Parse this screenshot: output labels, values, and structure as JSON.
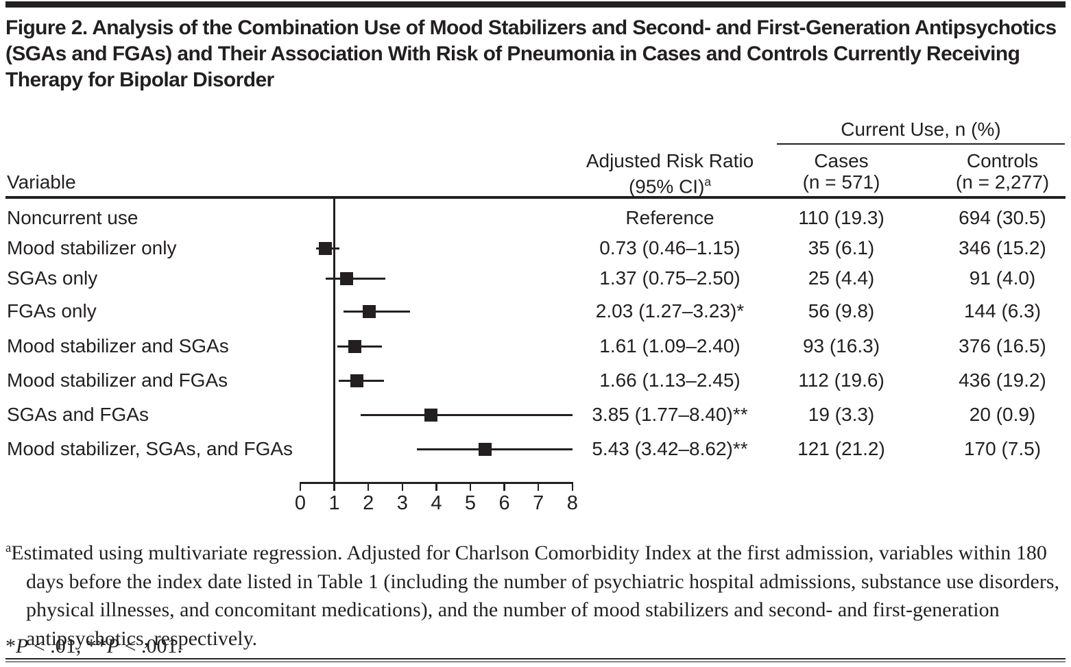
{
  "title": "Figure 2. Analysis of the Combination Use of Mood Stabilizers and Second- and First-Generation Antipsychotics (SGAs and FGAs) and Their Association With Risk of Pneumonia in Cases and Controls Currently Receiving Therapy for Bipolar Disorder",
  "colors": {
    "ink": "#231f20"
  },
  "table": {
    "variable_header": "Variable",
    "arr_header_line1": "Adjusted Risk Ratio",
    "arr_header_line2_base": "(95% CI)",
    "arr_header_sup": "a",
    "current_use_header": "Current Use, n (%)",
    "cases_header_line1": "Cases",
    "cases_header_line2": "(n = 571)",
    "controls_header_line1": "Controls",
    "controls_header_line2": "(n = 2,277)",
    "rows": [
      {
        "variable": "Noncurrent use",
        "arr": "Reference",
        "cases": "110 (19.3)",
        "controls": "694 (30.5)"
      },
      {
        "variable": "Mood stabilizer only",
        "arr": "0.73 (0.46–1.15)",
        "cases": "35 (6.1)",
        "controls": "346 (15.2)"
      },
      {
        "variable": "SGAs only",
        "arr": "1.37 (0.75–2.50)",
        "cases": "25 (4.4)",
        "controls": "91 (4.0)"
      },
      {
        "variable": "FGAs only",
        "arr": "2.03 (1.27–3.23)*",
        "cases": "56 (9.8)",
        "controls": "144 (6.3)"
      },
      {
        "variable": "Mood stabilizer and SGAs",
        "arr": "1.61 (1.09–2.40)",
        "cases": "93 (16.3)",
        "controls": "376 (16.5)"
      },
      {
        "variable": "Mood stabilizer and FGAs",
        "arr": "1.66 (1.13–2.45)",
        "cases": "112 (19.6)",
        "controls": "436 (19.2)"
      },
      {
        "variable": "SGAs and FGAs",
        "arr": "3.85 (1.77–8.40)**",
        "cases": "19 (3.3)",
        "controls": "20 (0.9)"
      },
      {
        "variable": "Mood stabilizer, SGAs, and FGAs",
        "arr": "5.43 (3.42–8.62)**",
        "cases": "121 (21.2)",
        "controls": "170 (7.5)"
      }
    ]
  },
  "chart_data": {
    "type": "scatter",
    "variant": "forest-plot",
    "categories": [
      "Noncurrent use",
      "Mood stabilizer only",
      "SGAs only",
      "FGAs only",
      "Mood stabilizer and SGAs",
      "Mood stabilizer and FGAs",
      "SGAs and FGAs",
      "Mood stabilizer, SGAs, and FGAs"
    ],
    "estimates": [
      null,
      0.73,
      1.37,
      2.03,
      1.61,
      1.66,
      3.85,
      5.43
    ],
    "ci_low": [
      null,
      0.46,
      0.75,
      1.27,
      1.09,
      1.13,
      1.77,
      3.42
    ],
    "ci_high": [
      null,
      1.15,
      2.5,
      3.23,
      2.4,
      2.45,
      8.4,
      8.62
    ],
    "xlim": [
      0,
      8
    ],
    "x_ticks": [
      0,
      1,
      2,
      3,
      4,
      5,
      6,
      7,
      8
    ],
    "reference_line_x": 1,
    "reference_label": "Reference",
    "marker": "filled-square",
    "note": "CI whiskers clipped at axis maximum of 8"
  },
  "footnotes": {
    "a_sup": "a",
    "a_text": "Estimated using multivariate regression. Adjusted for Charlson Comorbidity Index at the first admission, variables within 180 days before the index date listed in Table 1 (including the number of psychiatric hospital admissions, substance use disorders, physical illnesses, and concomitant medications), and the number of mood stabilizers and second- and first-generation antipsychotics, respectively.",
    "sig_parts": [
      "*",
      "P",
      " < .01, **",
      "P",
      " < .001."
    ]
  }
}
